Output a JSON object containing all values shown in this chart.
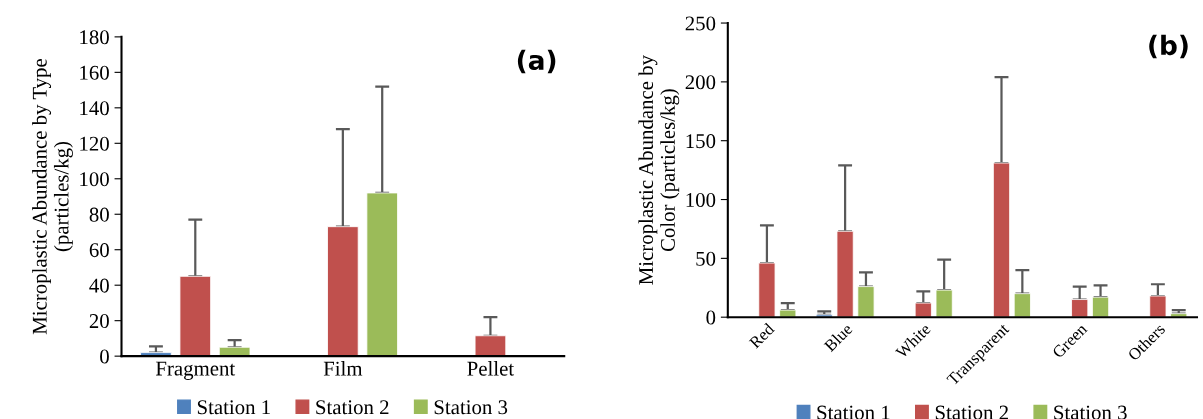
{
  "chart_data": [
    {
      "type": "bar",
      "ylabel": "Microplastic Abundance by Type\n(particles/kg)",
      "categories": [
        "Fragment",
        "Film",
        "Pellet"
      ],
      "ylim": [
        0,
        180
      ],
      "yticks": [
        0,
        20,
        40,
        60,
        80,
        100,
        120,
        140,
        160,
        180
      ],
      "legend": "bottom",
      "grid": false,
      "annotations": [
        "(a)"
      ],
      "series": [
        {
          "name": "Station 1",
          "color": "#4f81bd",
          "values": [
            2,
            null,
            null
          ],
          "errors": [
            [
              2,
              5.5
            ],
            null,
            null
          ]
        },
        {
          "name": "Station 2",
          "color": "#c0504d",
          "values": [
            45,
            73,
            11.5
          ],
          "errors": [
            [
              45,
              77
            ],
            [
              73,
              128
            ],
            [
              11.5,
              22
            ]
          ]
        },
        {
          "name": "Station 3",
          "color": "#9bbb59",
          "values": [
            5,
            92,
            null
          ],
          "errors": [
            [
              5,
              9
            ],
            [
              92,
              152
            ],
            null
          ]
        }
      ]
    },
    {
      "type": "bar",
      "ylabel": "Microplastic Abundance by\nColor (particles/kg)",
      "categories": [
        "Red",
        "Blue",
        "White",
        "Transparent",
        "Green",
        "Others"
      ],
      "ylim": [
        0,
        250
      ],
      "yticks": [
        0,
        50,
        100,
        150,
        200,
        250
      ],
      "legend": "bottom",
      "grid": false,
      "annotations": [
        "(b)"
      ],
      "series": [
        {
          "name": "Station 1",
          "color": "#4f81bd",
          "values": [
            null,
            2,
            null,
            null,
            null,
            null
          ],
          "errors": [
            null,
            [
              2,
              5
            ],
            null,
            null,
            null,
            null
          ]
        },
        {
          "name": "Station 2",
          "color": "#c0504d",
          "values": [
            46,
            73,
            12,
            131,
            15,
            18
          ],
          "errors": [
            [
              46,
              78
            ],
            [
              73,
              129
            ],
            [
              12,
              22
            ],
            [
              131,
              204
            ],
            [
              15,
              26
            ],
            [
              18,
              28
            ]
          ]
        },
        {
          "name": "Station 3",
          "color": "#9bbb59",
          "values": [
            6,
            26,
            23,
            20,
            17,
            3
          ],
          "errors": [
            [
              6,
              12
            ],
            [
              26,
              38
            ],
            [
              23,
              49
            ],
            [
              20,
              40
            ],
            [
              17,
              27
            ],
            [
              3,
              6
            ]
          ]
        }
      ]
    }
  ]
}
